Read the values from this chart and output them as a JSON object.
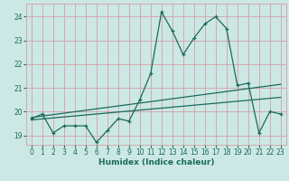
{
  "title": "",
  "xlabel": "Humidex (Indice chaleur)",
  "bg_color": "#cce8e4",
  "grid_color": "#d4a0a8",
  "line_color": "#1a6b5a",
  "x_data": [
    0,
    1,
    2,
    3,
    4,
    5,
    6,
    7,
    8,
    9,
    10,
    11,
    12,
    13,
    14,
    15,
    16,
    17,
    18,
    19,
    20,
    21,
    22,
    23
  ],
  "y_data": [
    19.7,
    19.9,
    19.1,
    19.4,
    19.4,
    19.4,
    18.7,
    19.2,
    19.7,
    19.6,
    20.5,
    21.6,
    24.2,
    23.4,
    22.4,
    23.1,
    23.7,
    24.0,
    23.5,
    21.1,
    21.2,
    19.1,
    20.0,
    19.9
  ],
  "trend1_x": [
    0,
    23
  ],
  "trend1_y": [
    19.75,
    21.15
  ],
  "trend2_x": [
    0,
    23
  ],
  "trend2_y": [
    19.65,
    20.6
  ],
  "ylim": [
    18.6,
    24.55
  ],
  "xlim": [
    -0.5,
    23.5
  ],
  "yticks": [
    19,
    20,
    21,
    22,
    23,
    24
  ],
  "xticks": [
    0,
    1,
    2,
    3,
    4,
    5,
    6,
    7,
    8,
    9,
    10,
    11,
    12,
    13,
    14,
    15,
    16,
    17,
    18,
    19,
    20,
    21,
    22,
    23
  ],
  "tick_fontsize": 5.5,
  "xlabel_fontsize": 6.5
}
